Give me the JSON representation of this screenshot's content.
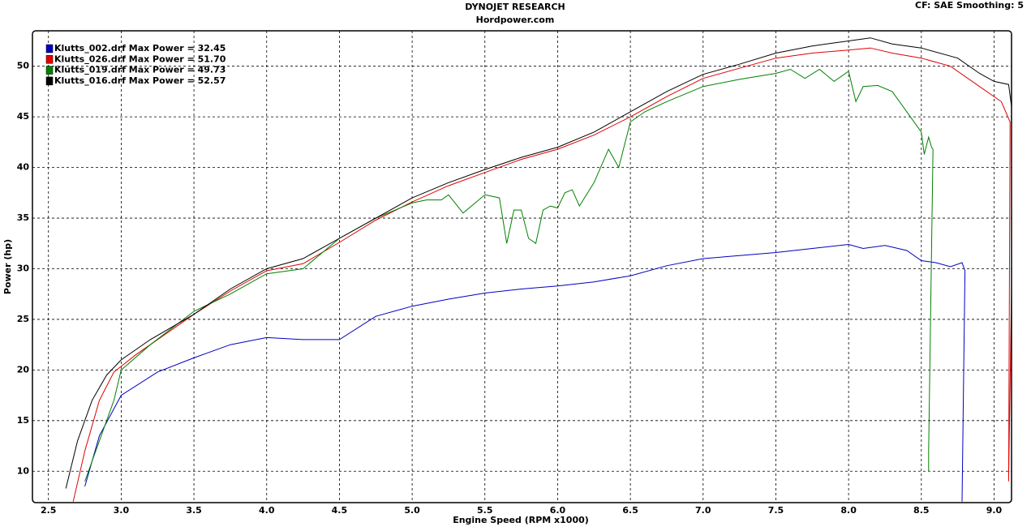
{
  "chart_data": {
    "type": "line",
    "title": "DYNOJET RESEARCH",
    "subtitle": "Hordpower.com",
    "annotation": "CF: SAE  Smoothing: 5",
    "x_label": "Engine Speed (RPM x1000)",
    "y_label": "Power (hp)",
    "xlim": [
      2.39,
      9.12
    ],
    "ylim": [
      6.9,
      53.5
    ],
    "xticks": [
      2.5,
      {
        "value": 3,
        "label": "3.0"
      },
      3.5,
      {
        "value": 4,
        "label": "4.0"
      },
      4.5,
      {
        "value": 5,
        "label": "5.0"
      },
      5.5,
      {
        "value": 6,
        "label": "6.0"
      },
      6.5,
      {
        "value": 7,
        "label": "7.0"
      },
      7.5,
      {
        "value": 8,
        "label": "8.0"
      },
      8.5,
      {
        "value": 9,
        "label": "9.0"
      }
    ],
    "yticks": [
      10,
      15,
      20,
      25,
      30,
      35,
      40,
      45,
      50
    ],
    "grid": true,
    "legend": "top-left",
    "series": [
      {
        "name": "Klutts_002.drf Max Power = 32.45",
        "color": "#0000c0",
        "x": [
          2.75,
          2.85,
          3.0,
          3.25,
          3.5,
          3.75,
          4.0,
          4.25,
          4.5,
          4.75,
          5.0,
          5.25,
          5.5,
          5.75,
          6.0,
          6.25,
          6.5,
          6.75,
          7.0,
          7.25,
          7.5,
          7.75,
          8.0,
          8.1,
          8.25,
          8.4,
          8.5,
          8.6,
          8.7,
          8.78,
          8.8,
          8.78
        ],
        "values": [
          8.5,
          13.5,
          17.5,
          19.8,
          21.2,
          22.5,
          23.2,
          23,
          23,
          25.3,
          26.3,
          27,
          27.6,
          28,
          28.3,
          28.7,
          29.3,
          30.3,
          31,
          31.3,
          31.6,
          32,
          32.4,
          32,
          32.3,
          31.8,
          30.8,
          30.6,
          30.2,
          30.6,
          29.8,
          7
        ]
      },
      {
        "name": "Klutts_026.drf Max Power = 51.70",
        "color": "#e00000",
        "x": [
          2.67,
          2.75,
          2.85,
          2.95,
          3.1,
          3.3,
          3.5,
          3.75,
          4.0,
          4.25,
          4.5,
          4.75,
          5.0,
          5.25,
          5.5,
          5.75,
          6.0,
          6.25,
          6.5,
          6.75,
          7.0,
          7.25,
          7.5,
          7.75,
          8.0,
          8.15,
          8.3,
          8.5,
          8.7,
          8.9,
          9.05,
          9.11,
          9.1,
          9.12
        ],
        "values": [
          7,
          12,
          17,
          19.8,
          21.5,
          23.5,
          25.5,
          27.8,
          29.8,
          30.5,
          32.6,
          34.8,
          36.6,
          38.2,
          39.5,
          40.8,
          41.8,
          43.2,
          45,
          47,
          48.8,
          49.8,
          50.8,
          51.3,
          51.6,
          51.8,
          51.3,
          50.8,
          50,
          48,
          46.5,
          44.5,
          9,
          28
        ]
      },
      {
        "name": "Klutts_019.drf Max Power = 49.73",
        "color": "#008000",
        "x": [
          2.75,
          2.85,
          2.95,
          3.0,
          3.2,
          3.5,
          3.75,
          4.0,
          4.25,
          4.5,
          4.75,
          5.0,
          5.1,
          5.2,
          5.25,
          5.35,
          5.5,
          5.6,
          5.65,
          5.7,
          5.75,
          5.8,
          5.85,
          5.9,
          5.95,
          6.0,
          6.05,
          6.1,
          6.15,
          6.25,
          6.35,
          6.42,
          6.5,
          6.6,
          6.75,
          7.0,
          7.25,
          7.5,
          7.6,
          7.7,
          7.8,
          7.9,
          8.0,
          8.05,
          8.1,
          8.2,
          8.3,
          8.4,
          8.5,
          8.52,
          8.55,
          8.57,
          8.58,
          8.55,
          8.55
        ],
        "values": [
          9,
          13,
          17,
          20,
          22.5,
          25.8,
          27.5,
          29.5,
          30,
          33,
          35,
          36.5,
          36.8,
          36.8,
          37.3,
          35.5,
          37.3,
          37,
          32.5,
          35.8,
          35.8,
          33,
          32.5,
          35.8,
          36.2,
          36,
          37.5,
          37.8,
          36.2,
          38.5,
          41.8,
          40,
          44.5,
          45.5,
          46.5,
          48,
          48.7,
          49.3,
          49.7,
          48.8,
          49.7,
          48.5,
          49.5,
          46.5,
          48,
          48.1,
          47.5,
          45.5,
          43.5,
          41.3,
          43,
          42,
          41.8,
          12,
          10
        ]
      },
      {
        "name": "Klutts_016.drf Max Power = 52.57",
        "color": "#000000",
        "x": [
          2.62,
          2.7,
          2.8,
          2.9,
          3.0,
          3.2,
          3.5,
          3.75,
          4.0,
          4.25,
          4.5,
          4.75,
          5.0,
          5.25,
          5.5,
          5.75,
          6.0,
          6.25,
          6.5,
          6.75,
          7.0,
          7.25,
          7.5,
          7.75,
          8.0,
          8.15,
          8.3,
          8.5,
          8.75,
          8.9,
          9.0,
          9.1,
          9.12
        ],
        "values": [
          8.3,
          13,
          17,
          19.5,
          21,
          23,
          25.5,
          28,
          30,
          31,
          33,
          35,
          37,
          38.5,
          39.8,
          41,
          42,
          43.5,
          45.5,
          47.5,
          49.2,
          50.2,
          51.3,
          52,
          52.5,
          52.8,
          52.2,
          51.8,
          50.8,
          49.3,
          48.5,
          48.2,
          46
        ]
      }
    ]
  }
}
